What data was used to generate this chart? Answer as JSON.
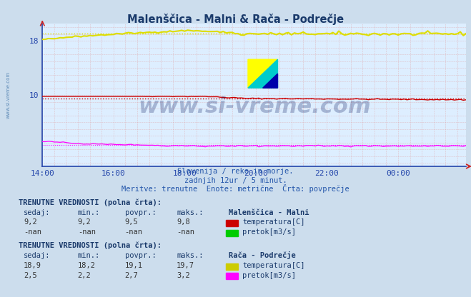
{
  "title": "Malenščica - Malni & Rača - Podrečje",
  "title_color": "#1a3a6b",
  "bg_color": "#ccdded",
  "plot_bg_color": "#ddeeff",
  "grid_color": "#ddaaaa",
  "axis_color": "#2244aa",
  "x_tick_labels": [
    "14:00",
    "16:00",
    "18:00",
    "20:00",
    "22:00",
    "00:00"
  ],
  "n_points": 144,
  "temp_malni_mean": 9.5,
  "temp_malni_min": 9.2,
  "temp_malni_max": 9.8,
  "color_temp_malni": "#cc0000",
  "color_pretok_malni": "#00cc00",
  "temp_raca_mean": 19.1,
  "temp_raca_min": 18.2,
  "temp_raca_max": 19.7,
  "color_temp_raca": "#dddd00",
  "pretok_raca_mean": 2.7,
  "pretok_raca_min": 2.2,
  "pretok_raca_max": 3.2,
  "color_pretok_raca": "#ff00ff",
  "watermark_text": "www.si-vreme.com",
  "subtitle1": "Slovenija / reke in morje.",
  "subtitle2": "zadnjih 12ur / 5 minut.",
  "subtitle3": "Meritve: trenutne  Enote: metrične  Črta: povprečje",
  "table1_header": "TRENUTNE VREDNOSTI (polna črta):",
  "table1_station": "Malenščica - Malni",
  "table1_rows": [
    {
      "sedaj": "9,2",
      "min": "9,2",
      "povpr": "9,5",
      "maks": "9,8",
      "label": "temperatura[C]",
      "color": "#cc0000"
    },
    {
      "sedaj": "-nan",
      "min": "-nan",
      "povpr": "-nan",
      "maks": "-nan",
      "label": "pretok[m3/s]",
      "color": "#00cc00"
    }
  ],
  "table2_header": "TRENUTNE VREDNOSTI (polna črta):",
  "table2_station": "Rača - Podrečje",
  "table2_rows": [
    {
      "sedaj": "18,9",
      "min": "18,2",
      "povpr": "19,1",
      "maks": "19,7",
      "label": "temperatura[C]",
      "color": "#cccc00"
    },
    {
      "sedaj": "2,5",
      "min": "2,2",
      "povpr": "2,7",
      "maks": "3,2",
      "label": "pretok[m3/s]",
      "color": "#ff00ff"
    }
  ],
  "ymin": -0.5,
  "ymax": 20.5,
  "yticks": [
    10,
    18
  ],
  "left_watermark": "www.si-vreme.com"
}
